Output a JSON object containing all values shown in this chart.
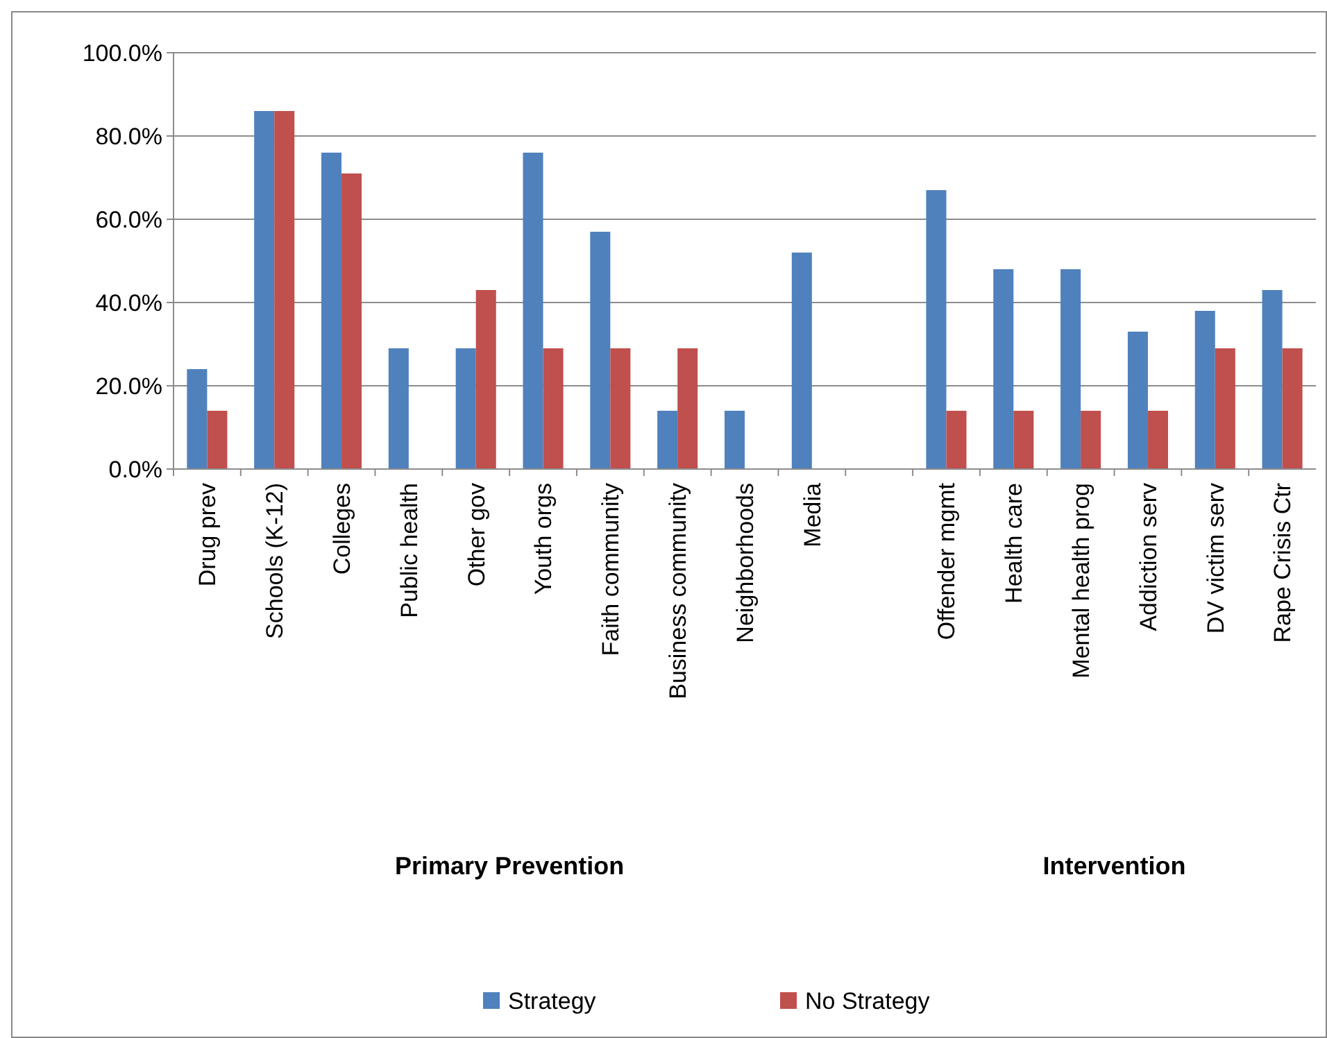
{
  "chart_data": {
    "type": "bar",
    "categories": [
      "Drug prev",
      "Schools (K-12)",
      "Colleges",
      "Public health",
      "Other gov",
      "Youth orgs",
      "Faith community",
      "Business community",
      "Neighborhoods",
      "Media",
      null,
      "Offender mgmt",
      "Health care",
      "Mental health prog",
      "Addiction serv",
      "DV victim serv",
      "Rape Crisis Ctr"
    ],
    "series": [
      {
        "name": "Strategy",
        "color": "#4f81bd",
        "values": [
          24,
          86,
          76,
          29,
          29,
          76,
          57,
          14,
          14,
          52,
          null,
          67,
          48,
          48,
          33,
          38,
          43
        ]
      },
      {
        "name": "No Strategy",
        "color": "#c0504d",
        "values": [
          14,
          86,
          71,
          0,
          43,
          29,
          29,
          29,
          0,
          0,
          null,
          14,
          14,
          14,
          14,
          29,
          29
        ]
      }
    ],
    "ylim": [
      0,
      100
    ],
    "yticks": [
      {
        "value": 0,
        "label": "0.0%"
      },
      {
        "value": 20,
        "label": "20.0%"
      },
      {
        "value": 40,
        "label": "40.0%"
      },
      {
        "value": 60,
        "label": "60.0%"
      },
      {
        "value": 80,
        "label": "80.0%"
      },
      {
        "value": 100,
        "label": "100.0%"
      }
    ],
    "grid": "y",
    "legend": "bottom",
    "annotations": [
      "Primary Prevention",
      "Intervention"
    ]
  }
}
